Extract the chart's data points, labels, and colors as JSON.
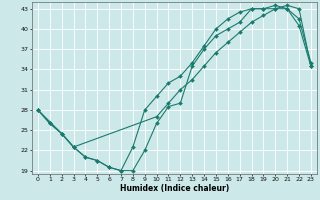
{
  "xlabel": "Humidex (Indice chaleur)",
  "bg_color": "#cce8e8",
  "grid_color": "#ffffff",
  "line_color": "#1a7a6e",
  "xlim": [
    -0.5,
    23.5
  ],
  "ylim": [
    18.5,
    44
  ],
  "yticks": [
    19,
    22,
    25,
    28,
    31,
    34,
    37,
    40,
    43
  ],
  "xticks": [
    0,
    1,
    2,
    3,
    4,
    5,
    6,
    7,
    8,
    9,
    10,
    11,
    12,
    13,
    14,
    15,
    16,
    17,
    18,
    19,
    20,
    21,
    22,
    23
  ],
  "series1_x": [
    0,
    1,
    2,
    3,
    4,
    5,
    6,
    7,
    8,
    9,
    10,
    11,
    12,
    13,
    14,
    15,
    16,
    17,
    18,
    19,
    20,
    21,
    22,
    23
  ],
  "series1_y": [
    28,
    26,
    24.5,
    22.5,
    21,
    20.5,
    19.5,
    19,
    19,
    22,
    26,
    28.5,
    29,
    34.5,
    37,
    39,
    40,
    41,
    43,
    43,
    43,
    43,
    41.5,
    35
  ],
  "series2_x": [
    0,
    1,
    2,
    3,
    4,
    5,
    6,
    7,
    8,
    9,
    10,
    11,
    12,
    13,
    14,
    15,
    16,
    17,
    18,
    19,
    20,
    21,
    22,
    23
  ],
  "series2_y": [
    28,
    26,
    24.5,
    22.5,
    21,
    20.5,
    19.5,
    19,
    22.5,
    28,
    30,
    32,
    33,
    35,
    37.5,
    40,
    41.5,
    42.5,
    43,
    43,
    43.5,
    43,
    40.5,
    34.5
  ],
  "series3_x": [
    0,
    2,
    3,
    10,
    11,
    12,
    13,
    14,
    15,
    16,
    17,
    18,
    19,
    20,
    21,
    22,
    23
  ],
  "series3_y": [
    28,
    24.5,
    22.5,
    27,
    29,
    31,
    32.5,
    34.5,
    36.5,
    38,
    39.5,
    41,
    42,
    43,
    43.5,
    43,
    34.5
  ]
}
